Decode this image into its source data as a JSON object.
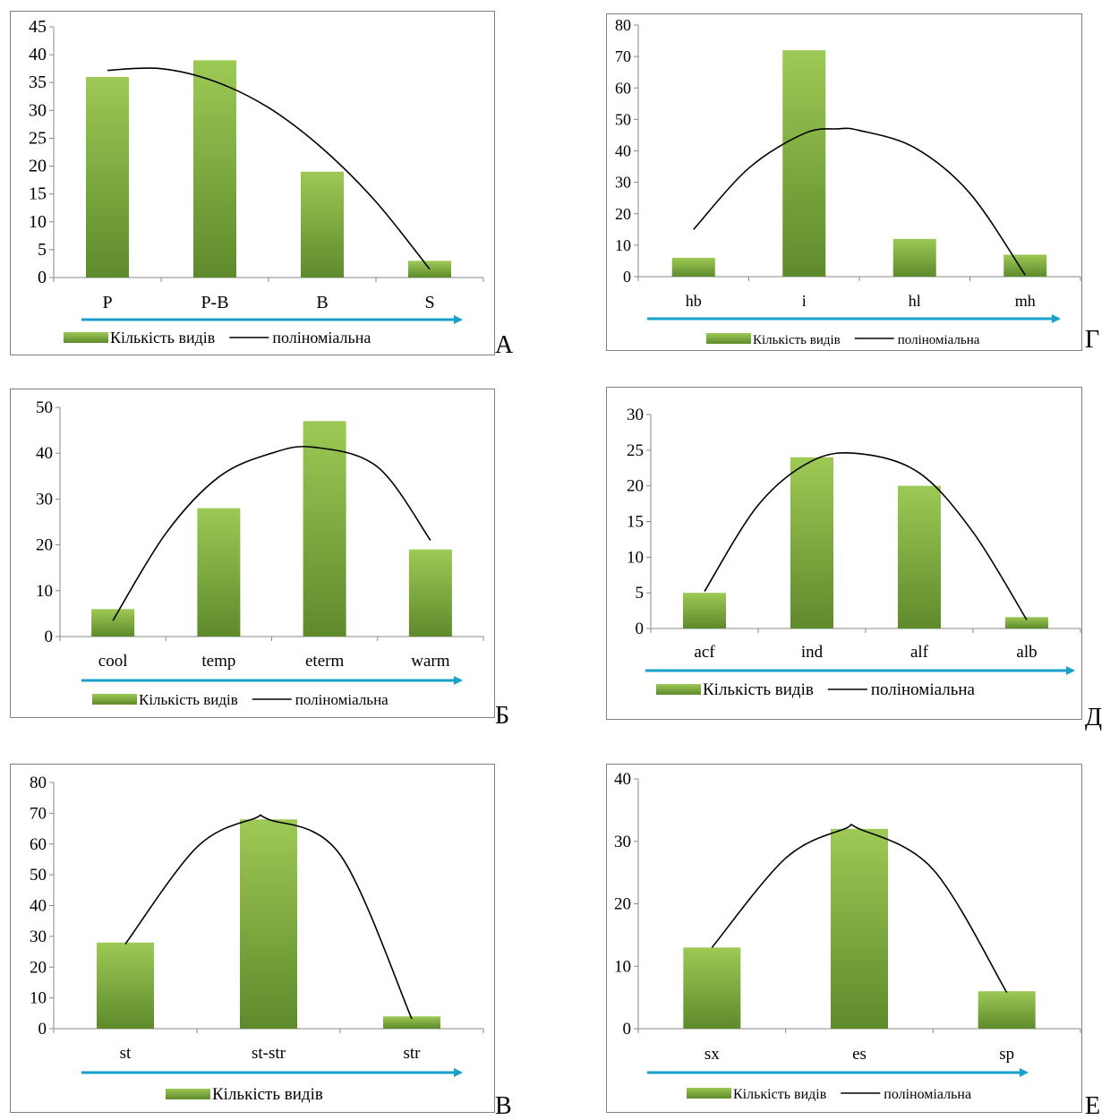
{
  "figure": {
    "legend_bar_label": "Кількість видів",
    "legend_line_label": "поліноміальна",
    "colors": {
      "bar_light": "#9dc955",
      "bar_dark": "#5e8a2c",
      "arrow": "#19a1cc",
      "frame": "#808080",
      "curve": "#000000"
    }
  },
  "chart_data": [
    {
      "panel_letter": "А",
      "type": "bar",
      "categories": [
        "P",
        "P-B",
        "B",
        "S"
      ],
      "values": [
        36,
        39,
        19,
        3
      ],
      "ylim": [
        0,
        45
      ],
      "yticks": [
        0,
        5,
        10,
        15,
        20,
        25,
        30,
        35,
        40,
        45
      ],
      "grid": false,
      "legend": "bottom",
      "legend_entries": [
        "Кількість видів",
        "поліноміальна"
      ],
      "trendline": "polynomial",
      "trend_points": [
        [
          0.0,
          37.2
        ],
        [
          0.5,
          37.5
        ],
        [
          1.0,
          35.2
        ],
        [
          1.5,
          30.5
        ],
        [
          2.0,
          23.2
        ],
        [
          2.5,
          13.6
        ],
        [
          3.0,
          1.5
        ]
      ]
    },
    {
      "panel_letter": "Г",
      "type": "bar",
      "categories": [
        "hb",
        "i",
        "hl",
        "mh"
      ],
      "values": [
        6,
        72,
        12,
        7
      ],
      "ylim": [
        0,
        80
      ],
      "yticks": [
        0,
        10,
        20,
        30,
        40,
        50,
        60,
        70,
        80
      ],
      "grid": false,
      "legend": "bottom",
      "legend_entries": [
        "Кількість видів",
        "поліноміальна"
      ],
      "trendline": "polynomial",
      "trend_points": [
        [
          0.0,
          15.0
        ],
        [
          0.5,
          34.5
        ],
        [
          1.0,
          45.5
        ],
        [
          1.3,
          47.0
        ],
        [
          1.5,
          46.5
        ],
        [
          2.0,
          41.0
        ],
        [
          2.5,
          26.5
        ],
        [
          3.0,
          0.5
        ]
      ]
    },
    {
      "panel_letter": "Б",
      "type": "bar",
      "categories": [
        "cool",
        "temp",
        "eterm",
        "warm"
      ],
      "values": [
        6,
        28,
        47,
        19
      ],
      "ylim": [
        0,
        50
      ],
      "yticks": [
        0,
        10,
        20,
        30,
        40,
        50
      ],
      "grid": false,
      "legend": "bottom",
      "legend_entries": [
        "Кількість видів",
        "поліноміальна"
      ],
      "trendline": "polynomial",
      "trend_points": [
        [
          0.0,
          3.5
        ],
        [
          0.5,
          22.5
        ],
        [
          1.0,
          34.8
        ],
        [
          1.5,
          40.0
        ],
        [
          1.9,
          41.3
        ],
        [
          2.5,
          37.0
        ],
        [
          3.0,
          21.0
        ]
      ]
    },
    {
      "panel_letter": "Д",
      "type": "bar",
      "categories": [
        "acf",
        "ind",
        "alf",
        "alb"
      ],
      "values": [
        5,
        24,
        20,
        1.6
      ],
      "ylim": [
        0,
        30
      ],
      "yticks": [
        0,
        5,
        10,
        15,
        20,
        25,
        30
      ],
      "grid": false,
      "legend": "bottom",
      "legend_entries": [
        "Кількість видів",
        "поліноміальна"
      ],
      "trendline": "polynomial",
      "trend_points": [
        [
          0.0,
          5.2
        ],
        [
          0.5,
          17.3
        ],
        [
          1.0,
          23.5
        ],
        [
          1.45,
          24.5
        ],
        [
          2.0,
          21.8
        ],
        [
          2.5,
          13.5
        ],
        [
          3.0,
          1.2
        ]
      ]
    },
    {
      "panel_letter": "В",
      "type": "bar",
      "categories": [
        "st",
        "st-str",
        "str"
      ],
      "values": [
        28,
        68,
        4
      ],
      "ylim": [
        0,
        80
      ],
      "yticks": [
        0,
        10,
        20,
        30,
        40,
        50,
        60,
        70,
        80
      ],
      "grid": false,
      "legend": "bottom",
      "legend_entries": [
        "Кількість видів"
      ],
      "trendline": "polynomial",
      "trend_points": [
        [
          0.0,
          27.5
        ],
        [
          0.5,
          59.0
        ],
        [
          0.9,
          68.3
        ],
        [
          1.0,
          68.0
        ],
        [
          1.5,
          56.5
        ],
        [
          2.0,
          3.2
        ]
      ]
    },
    {
      "panel_letter": "Е",
      "type": "bar",
      "categories": [
        "sx",
        "es",
        "sp"
      ],
      "values": [
        13,
        32,
        6
      ],
      "ylim": [
        0,
        40
      ],
      "yticks": [
        0,
        10,
        20,
        30,
        40
      ],
      "grid": false,
      "legend": "bottom",
      "legend_entries": [
        "Кількість видів",
        "поліноміальна"
      ],
      "trendline": "polynomial",
      "trend_points": [
        [
          0.0,
          13.0
        ],
        [
          0.5,
          27.3
        ],
        [
          0.9,
          32.0
        ],
        [
          1.0,
          32.0
        ],
        [
          1.5,
          25.5
        ],
        [
          2.0,
          5.8
        ]
      ]
    }
  ]
}
